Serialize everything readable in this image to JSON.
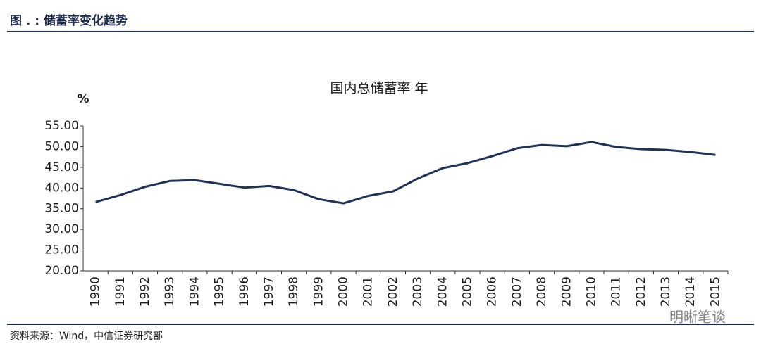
{
  "header": {
    "title": "图 . : 储蓄率变化趋势"
  },
  "chart_data": {
    "type": "line",
    "title": "国内总储蓄率 年",
    "y_label": "%",
    "categories": [
      "1990",
      "1991",
      "1992",
      "1993",
      "1994",
      "1995",
      "1996",
      "1997",
      "1998",
      "1999",
      "2000",
      "2001",
      "2002",
      "2003",
      "2004",
      "2005",
      "2006",
      "2007",
      "2008",
      "2009",
      "2010",
      "2011",
      "2012",
      "2013",
      "2014",
      "2015"
    ],
    "values": [
      36.6,
      38.3,
      40.3,
      41.7,
      41.9,
      41.0,
      40.1,
      40.5,
      39.5,
      37.3,
      36.3,
      38.1,
      39.2,
      42.3,
      44.8,
      46.0,
      47.7,
      49.6,
      50.4,
      50.1,
      51.1,
      49.9,
      49.4,
      49.2,
      48.7,
      48.0
    ],
    "color": "#1f3357",
    "ylim": [
      20,
      55
    ],
    "yticks": [
      {
        "value": 20,
        "label": "20.00"
      },
      {
        "value": 25,
        "label": "25.00"
      },
      {
        "value": 30,
        "label": "30.00"
      },
      {
        "value": 35,
        "label": "35.00"
      },
      {
        "value": 40,
        "label": "40.00"
      },
      {
        "value": 45,
        "label": "45.00"
      },
      {
        "value": 50,
        "label": "50.00"
      },
      {
        "value": 55,
        "label": "55.00"
      }
    ],
    "grid": false
  },
  "footer": {
    "source": "资料来源：Wind，中信证券研究部",
    "watermark": "明晰笔谈"
  }
}
